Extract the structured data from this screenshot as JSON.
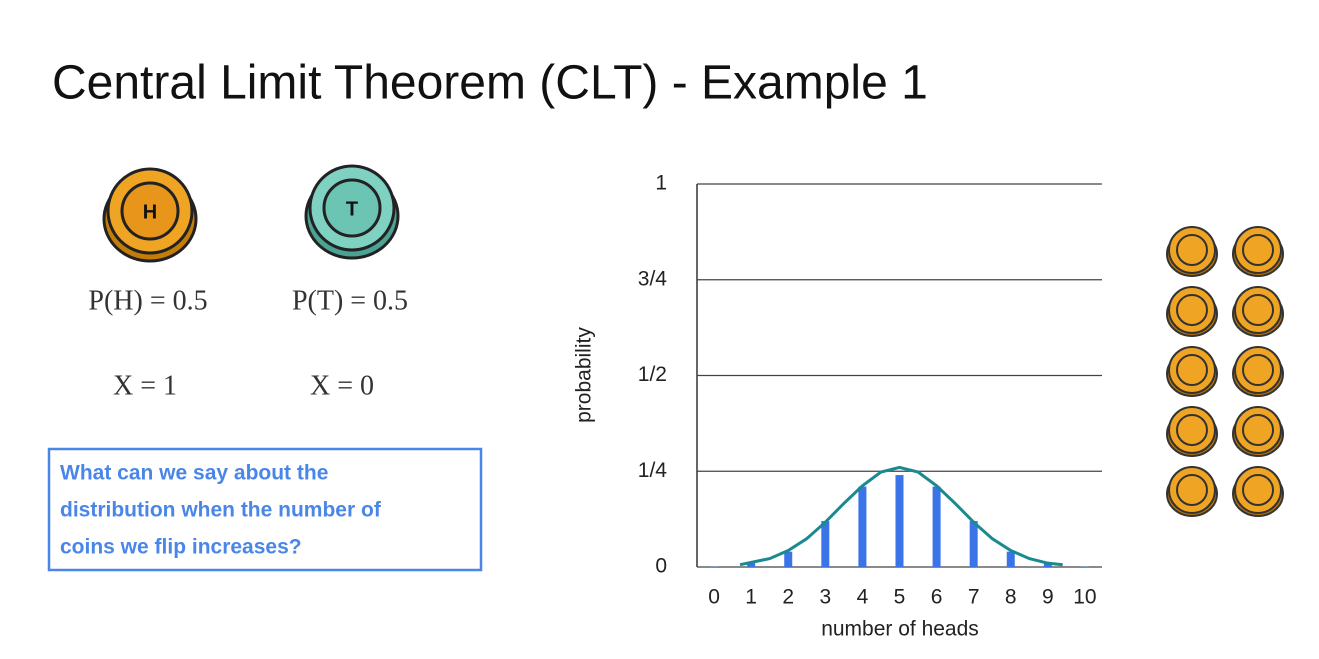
{
  "title": "Central Limit Theorem (CLT) - Example 1",
  "coins": [
    {
      "label": "H",
      "probability": "P(H) = 0.5",
      "variable": "X = 1"
    },
    {
      "label": "T",
      "probability": "P(T) = 0.5",
      "variable": "X = 0"
    }
  ],
  "question": [
    "What can we say about the",
    "distribution when the number of",
    "coins we flip increases?"
  ],
  "chart_data": {
    "type": "bar",
    "x_label": "number of heads",
    "y_label": "probability",
    "x": [
      0,
      1,
      2,
      3,
      4,
      5,
      6,
      7,
      8,
      9,
      10
    ],
    "values": [
      0.001,
      0.01,
      0.04,
      0.12,
      0.21,
      0.24,
      0.21,
      0.12,
      0.04,
      0.01,
      0.001
    ],
    "color": "#3b73e8",
    "curve": {
      "color": "#1a8a8f",
      "x": [
        0.7,
        1.5,
        2,
        2.5,
        3,
        3.5,
        4,
        4.5,
        5,
        5.5,
        6,
        6.5,
        7,
        7.5,
        8,
        8.5,
        9,
        9.4
      ],
      "values": [
        0.006,
        0.022,
        0.043,
        0.074,
        0.117,
        0.166,
        0.212,
        0.248,
        0.26,
        0.248,
        0.212,
        0.166,
        0.117,
        0.074,
        0.043,
        0.022,
        0.01,
        0.006
      ]
    },
    "xlim": [
      -0.46,
      10.46
    ],
    "xticks": [
      0,
      1,
      2,
      3,
      4,
      5,
      6,
      7,
      8,
      9,
      10
    ],
    "ylim": [
      0,
      1
    ],
    "yticks": [
      0,
      {
        "value": 0.25,
        "label": "1/4"
      },
      {
        "value": 0.5,
        "label": "1/2"
      },
      {
        "value": 0.75,
        "label": "3/4"
      },
      1
    ],
    "grid": true
  }
}
